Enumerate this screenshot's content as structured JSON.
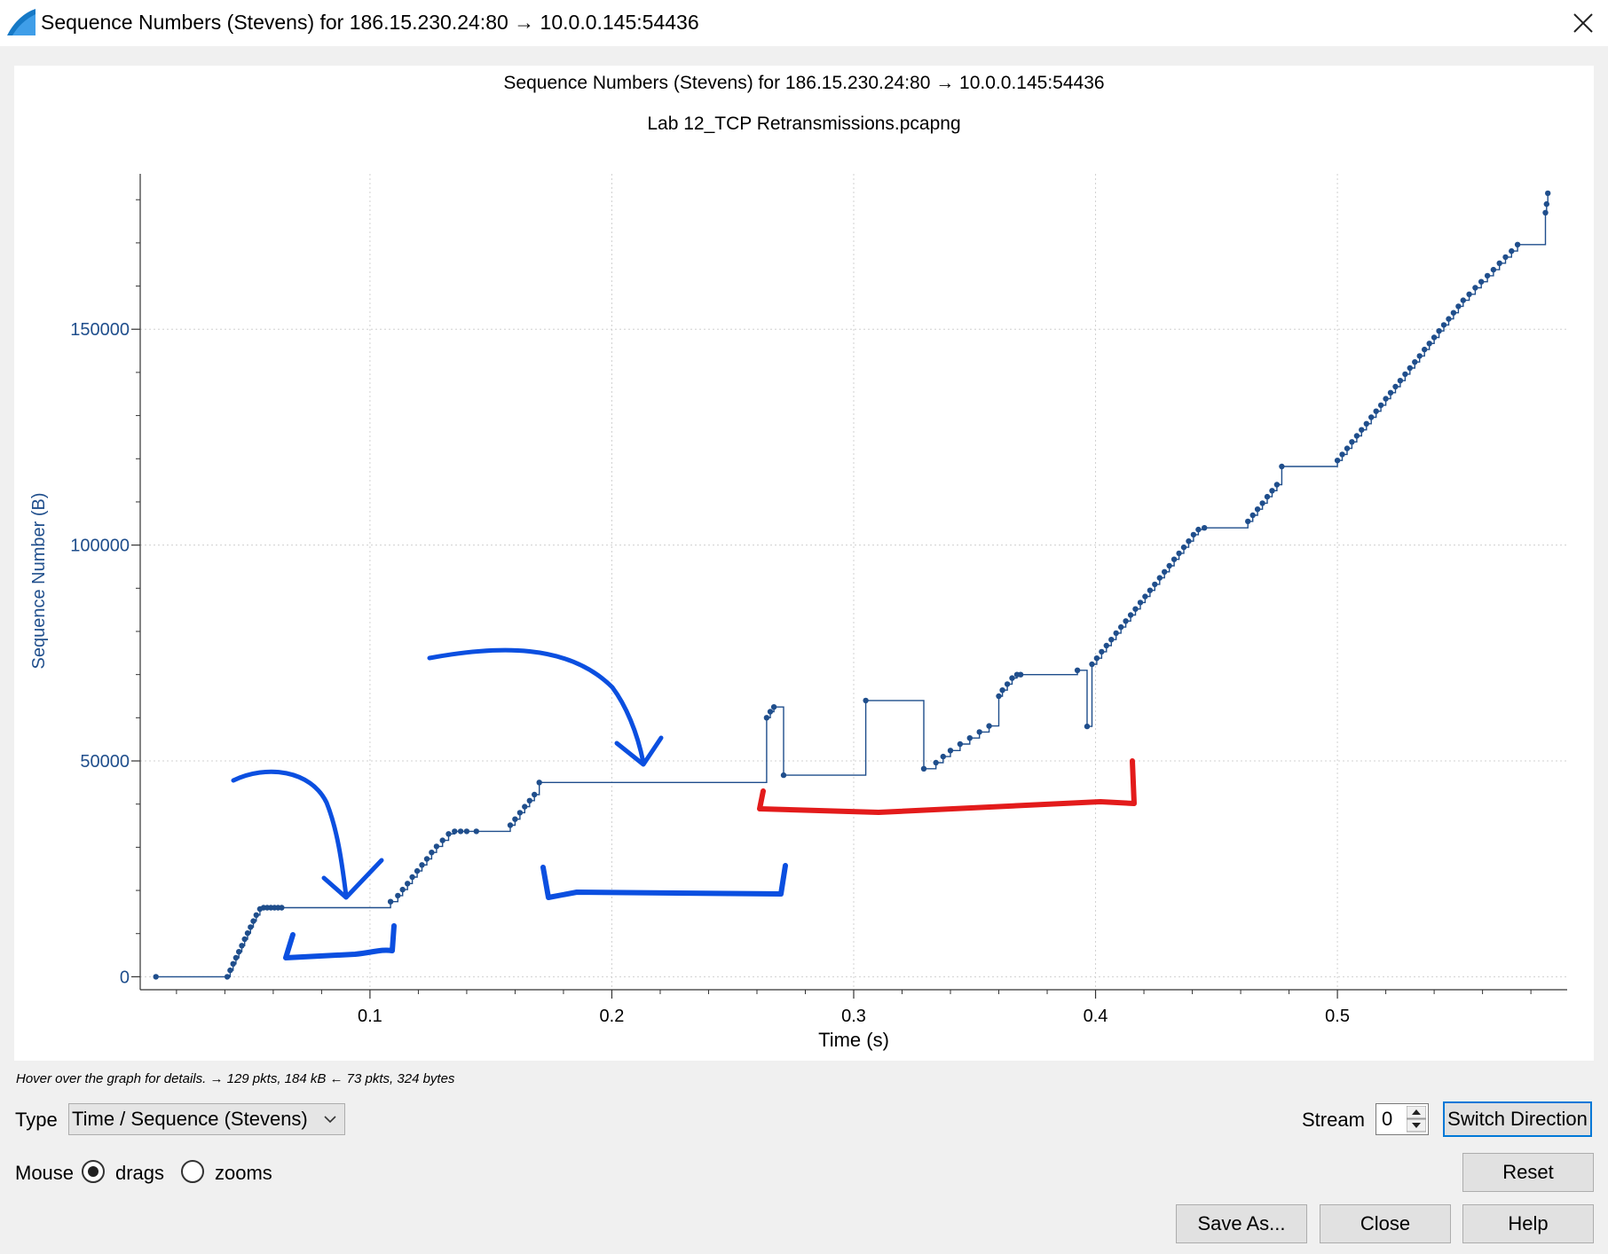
{
  "window": {
    "title": "Sequence Numbers (Stevens) for 186.15.230.24:80 → 10.0.0.145:54436",
    "icon": "wireshark-fin-icon",
    "close_icon": "close-icon"
  },
  "plot": {
    "title": "Sequence Numbers (Stevens) for 186.15.230.24:80 → 10.0.0.145:54436",
    "subtitle": "Lab 12_TCP Retransmissions.pcapng"
  },
  "chart_data": {
    "type": "scatter",
    "title": "Sequence Numbers (Stevens) for 186.15.230.24:80 → 10.0.0.145:54436",
    "subtitle": "Lab 12_TCP Retransmissions.pcapng",
    "xlabel": "Time (s)",
    "ylabel": "Sequence Number (B)",
    "xlim": [
      0.005,
      0.595
    ],
    "ylim": [
      -3000,
      186000
    ],
    "xticks": [
      0.1,
      0.2,
      0.3,
      0.4,
      0.5
    ],
    "xtick_labels": [
      "0.1",
      "0.2",
      "0.3",
      "0.4",
      "0.5"
    ],
    "yticks": [
      0,
      50000,
      100000,
      150000
    ],
    "ytick_labels": [
      "0",
      "50000",
      "100000",
      "150000"
    ],
    "grid": true,
    "legend": "none",
    "series_color": "#1f4e8c",
    "series": [
      {
        "x": [
          0.0115,
          0.041,
          0.0422,
          0.0434,
          0.0446,
          0.0458,
          0.047,
          0.0482,
          0.0494,
          0.0506,
          0.0518,
          0.053,
          0.0545,
          0.056,
          0.0575,
          0.059,
          0.0605,
          0.062,
          0.0635,
          0.1085,
          0.1115,
          0.1135,
          0.1155,
          0.1175,
          0.1195,
          0.1215,
          0.1235,
          0.1255,
          0.1275,
          0.13,
          0.1325,
          0.135,
          0.1375,
          0.14,
          0.144,
          0.158,
          0.16,
          0.162,
          0.164,
          0.166,
          0.168,
          0.17,
          0.264,
          0.2655,
          0.267,
          0.271,
          0.305,
          0.329,
          0.334,
          0.337,
          0.34,
          0.344,
          0.348,
          0.352,
          0.356,
          0.36,
          0.3615,
          0.3635,
          0.3655,
          0.3675,
          0.369,
          0.3925,
          0.3965,
          0.3985,
          0.4005,
          0.4025,
          0.4045,
          0.4065,
          0.4085,
          0.4105,
          0.4125,
          0.4145,
          0.4165,
          0.4185,
          0.4205,
          0.4225,
          0.4245,
          0.4265,
          0.4285,
          0.4305,
          0.4325,
          0.4345,
          0.4365,
          0.4385,
          0.4405,
          0.4425,
          0.445,
          0.463,
          0.465,
          0.467,
          0.469,
          0.471,
          0.473,
          0.475,
          0.477,
          0.5,
          0.502,
          0.504,
          0.506,
          0.508,
          0.51,
          0.512,
          0.514,
          0.516,
          0.518,
          0.52,
          0.522,
          0.524,
          0.526,
          0.528,
          0.53,
          0.532,
          0.534,
          0.536,
          0.538,
          0.54,
          0.542,
          0.544,
          0.546,
          0.548,
          0.55,
          0.552,
          0.5545,
          0.557,
          0.5595,
          0.562,
          0.5645,
          0.567,
          0.5695,
          0.572,
          0.5745,
          0.586,
          0.5865,
          0.587
        ],
        "y": [
          0,
          0,
          1500,
          3000,
          4400,
          5800,
          7200,
          8700,
          10100,
          11500,
          12900,
          14300,
          15700,
          16000,
          16000,
          16000,
          16000,
          16000,
          16000,
          17400,
          18800,
          20200,
          21600,
          23100,
          24500,
          25900,
          27300,
          28800,
          30200,
          31600,
          33100,
          33700,
          33700,
          33700,
          33700,
          35100,
          36500,
          38000,
          39400,
          40800,
          42200,
          45000,
          60000,
          61400,
          62500,
          46700,
          64000,
          48200,
          49600,
          51000,
          52400,
          53900,
          55300,
          56700,
          58100,
          65000,
          66400,
          67800,
          69200,
          70000,
          70000,
          71000,
          58000,
          72400,
          73800,
          75300,
          76700,
          78100,
          79600,
          81000,
          82400,
          83800,
          85200,
          86700,
          88100,
          89500,
          90900,
          92400,
          93800,
          95200,
          96700,
          98100,
          99500,
          100900,
          102400,
          103600,
          104000,
          105500,
          106900,
          108300,
          109700,
          111200,
          112600,
          114000,
          118200,
          119600,
          121000,
          122400,
          123900,
          125300,
          126700,
          128100,
          129600,
          131000,
          132400,
          133900,
          135300,
          136700,
          138100,
          139600,
          141000,
          142400,
          143800,
          145300,
          146700,
          148100,
          149600,
          151000,
          152400,
          153800,
          155300,
          156700,
          158100,
          159600,
          161000,
          162400,
          163800,
          165300,
          166700,
          168100,
          169600,
          177000,
          179000,
          181500
        ]
      }
    ]
  },
  "annotations": [
    "blue-arrow-1",
    "blue-arrow-2",
    "blue-bracket-1",
    "blue-bracket-2",
    "red-bracket"
  ],
  "status": {
    "hint": "Hover over the graph for details. → 129 pkts, 184 kB ← 73 pkts, 324 bytes"
  },
  "controls": {
    "type_label": "Type",
    "type_value": "Time / Sequence (Stevens)",
    "stream_label": "Stream",
    "stream_value": "0",
    "switch_direction": "Switch Direction",
    "mouse_label": "Mouse",
    "drags_label": "drags",
    "zooms_label": "zooms",
    "reset": "Reset",
    "save_as": "Save As...",
    "close": "Close",
    "help": "Help"
  }
}
